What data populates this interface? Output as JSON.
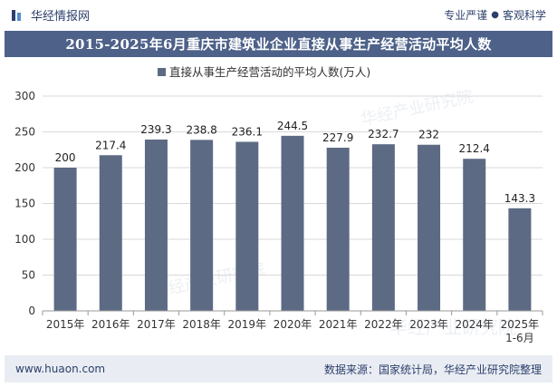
{
  "header": {
    "brand_name": "华经情报网",
    "tag_1": "专业严谨",
    "tag_sep": "●",
    "tag_2": "客观科学"
  },
  "title": "2015-2025年6月重庆市建筑业企业直接从事生产经营活动平均人数",
  "footer": {
    "website": "www.huaon.com",
    "source": "数据来源：国家统计局，华经产业研究院整理"
  },
  "colors": {
    "bar": "#5d6a84",
    "title_bg": "#4d6189",
    "grid": "#d9d9d9"
  },
  "chart_data": {
    "type": "bar",
    "categories": [
      "2015年",
      "2016年",
      "2017年",
      "2018年",
      "2019年",
      "2020年",
      "2021年",
      "2022年",
      "2023年",
      "2024年",
      "2025年\n1-6月"
    ],
    "series": [
      {
        "name": "直接从事生产经营活动的平均人数(万人)",
        "values": [
          200,
          217.4,
          239.3,
          238.8,
          236.1,
          244.5,
          227.9,
          232.7,
          232,
          212.4,
          143.3
        ]
      }
    ],
    "value_labels": [
      "200",
      "217.4",
      "239.3",
      "238.8",
      "236.1",
      "244.5",
      "227.9",
      "232.7",
      "232",
      "212.4",
      "143.3"
    ],
    "ylim": [
      0,
      300
    ],
    "yticks": [
      "0",
      "50",
      "100",
      "150",
      "200",
      "250",
      "300"
    ],
    "grid": true,
    "legend_position": "top"
  }
}
